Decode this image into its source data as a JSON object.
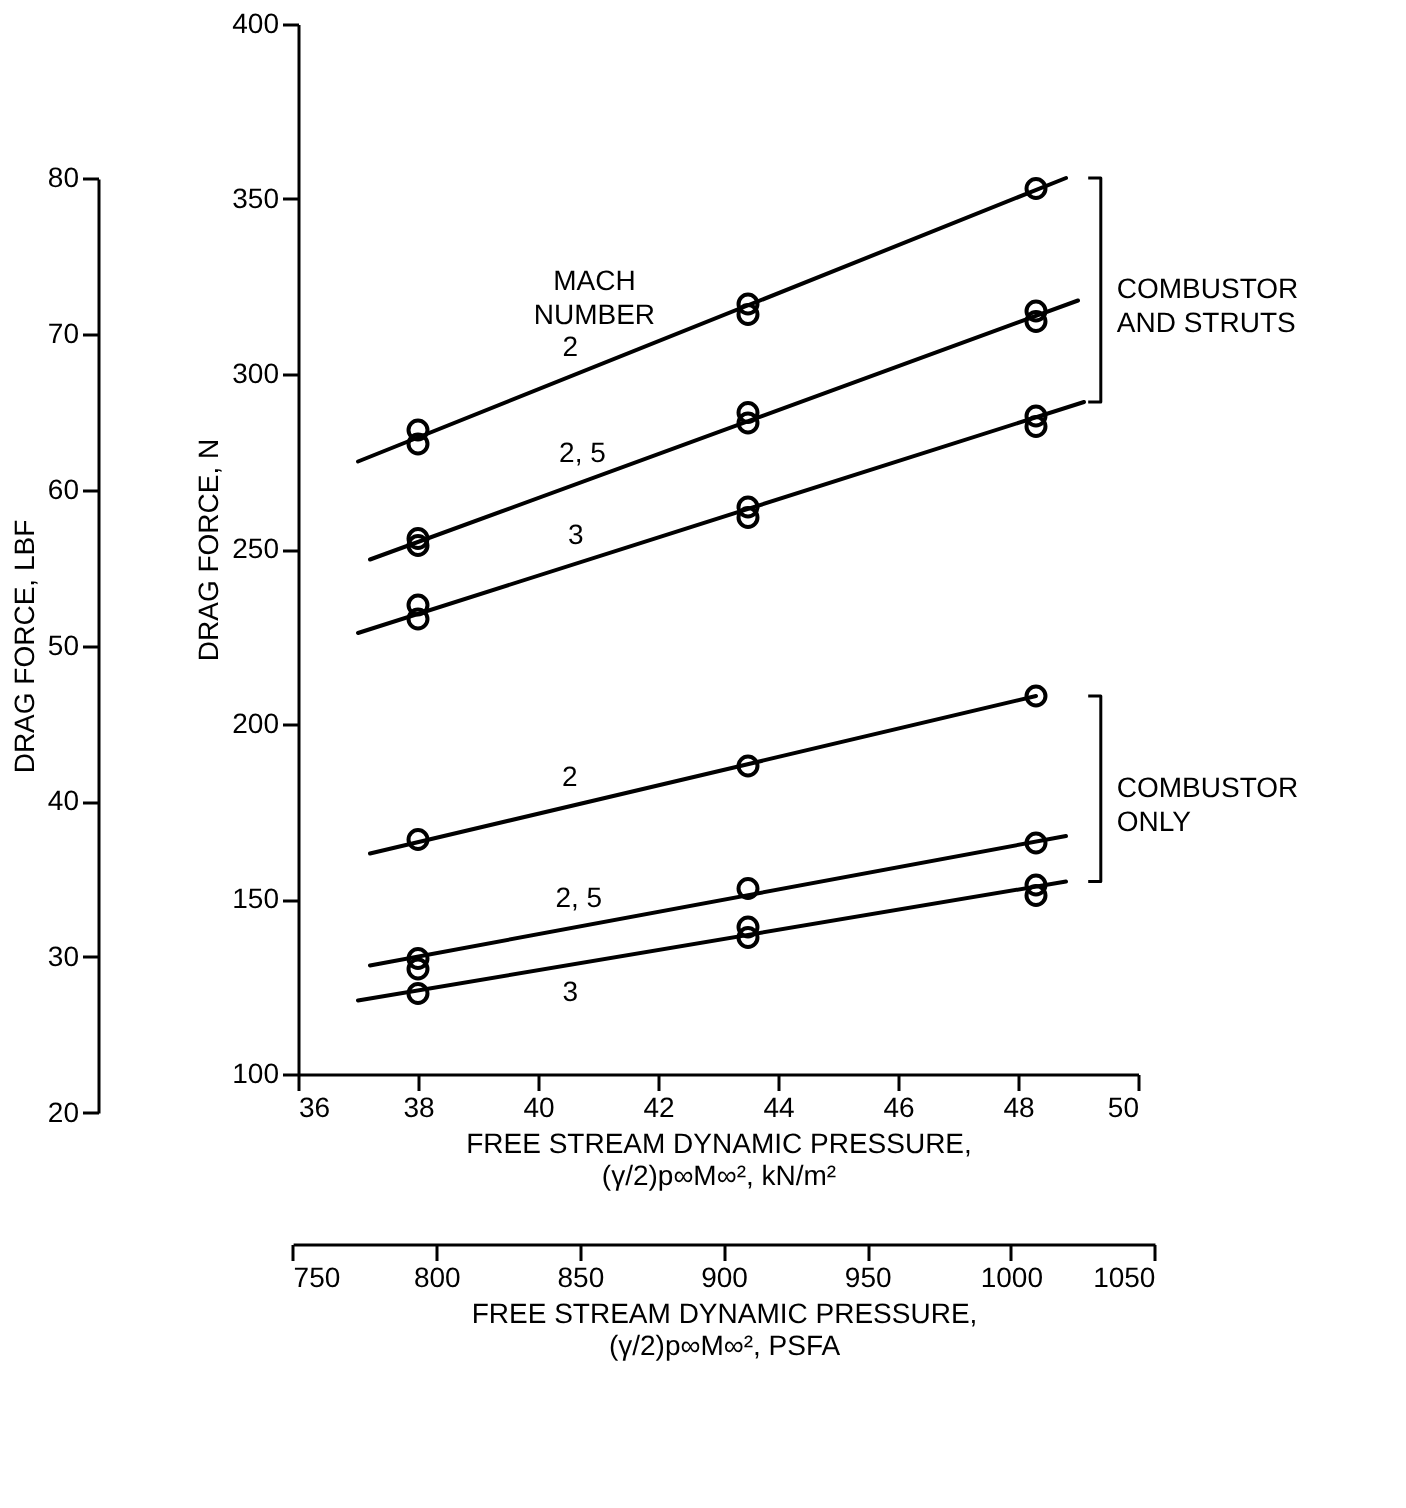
{
  "chart_data": {
    "type": "scatter",
    "xlabel": "FREE STREAM DYNAMIC PRESSURE,\n(γ/2)p∞M∞², kN/m²",
    "ylabel": "DRAG FORCE, N",
    "y2label": "DRAG FORCE, LBF",
    "x2label": "FREE STREAM DYNAMIC PRESSURE,\n(γ/2)p∞M∞², PSFA",
    "xlim": [
      36,
      50
    ],
    "xticks": [
      36,
      38,
      40,
      42,
      44,
      46,
      48,
      50
    ],
    "ylim": [
      100,
      400
    ],
    "yticks": [
      100,
      150,
      200,
      250,
      300,
      350,
      400
    ],
    "y2lim": [
      20,
      80
    ],
    "y2ticks": [
      20,
      30,
      40,
      50,
      60,
      70,
      80
    ],
    "x2lim": [
      750,
      1050
    ],
    "x2ticks": [
      750,
      800,
      850,
      900,
      950,
      1000,
      1050
    ],
    "grid": false,
    "legend": false,
    "marker": "circle",
    "series": [
      {
        "type": "scatter",
        "color": "#000000",
        "x": [
          38,
          38,
          43.5,
          43.5,
          48.3
        ],
        "values": [
          284,
          280,
          320,
          317,
          353
        ]
      },
      {
        "type": "line",
        "name": "2",
        "marker": "none",
        "color": "#000000",
        "x": [
          37.0,
          48.8
        ],
        "values": [
          275,
          356
        ]
      },
      {
        "type": "scatter",
        "color": "#000000",
        "x": [
          38,
          38,
          43.5,
          43.5,
          48.3,
          48.3
        ],
        "values": [
          253,
          251,
          289,
          286,
          318,
          315
        ]
      },
      {
        "type": "line",
        "name": "2, 5",
        "marker": "none",
        "color": "#000000",
        "x": [
          37.2,
          49.0
        ],
        "values": [
          247,
          321
        ]
      },
      {
        "type": "scatter",
        "color": "#000000",
        "x": [
          38,
          38,
          43.5,
          43.5,
          48.3,
          48.3
        ],
        "values": [
          234,
          230,
          262,
          259,
          288,
          285
        ]
      },
      {
        "type": "line",
        "name": "3",
        "marker": "none",
        "color": "#000000",
        "x": [
          37.0,
          49.1
        ],
        "values": [
          226,
          292
        ]
      },
      {
        "type": "scatter",
        "color": "#000000",
        "x": [
          38,
          43.5,
          48.3
        ],
        "values": [
          167,
          188,
          208
        ]
      },
      {
        "type": "line",
        "name": "2",
        "marker": "none",
        "color": "#000000",
        "x": [
          37.2,
          48.3
        ],
        "values": [
          163,
          208
        ]
      },
      {
        "type": "scatter",
        "color": "#000000",
        "x": [
          38,
          38,
          43.5,
          48.3
        ],
        "values": [
          133,
          130,
          153,
          166
        ]
      },
      {
        "type": "line",
        "name": "2, 5",
        "marker": "none",
        "color": "#000000",
        "x": [
          37.2,
          48.8
        ],
        "values": [
          131,
          168
        ]
      },
      {
        "type": "scatter",
        "color": "#000000",
        "x": [
          38,
          43.5,
          43.5,
          48.3,
          48.3
        ],
        "values": [
          123,
          142,
          139,
          154,
          151
        ]
      },
      {
        "type": "line",
        "name": "3",
        "marker": "none",
        "color": "#000000",
        "x": [
          37.0,
          48.8
        ],
        "values": [
          121,
          155
        ]
      }
    ],
    "annotations": [
      "MACH\nNUMBER",
      "COMBUSTOR\nAND STRUTS",
      "COMBUSTOR\nONLY"
    ]
  }
}
